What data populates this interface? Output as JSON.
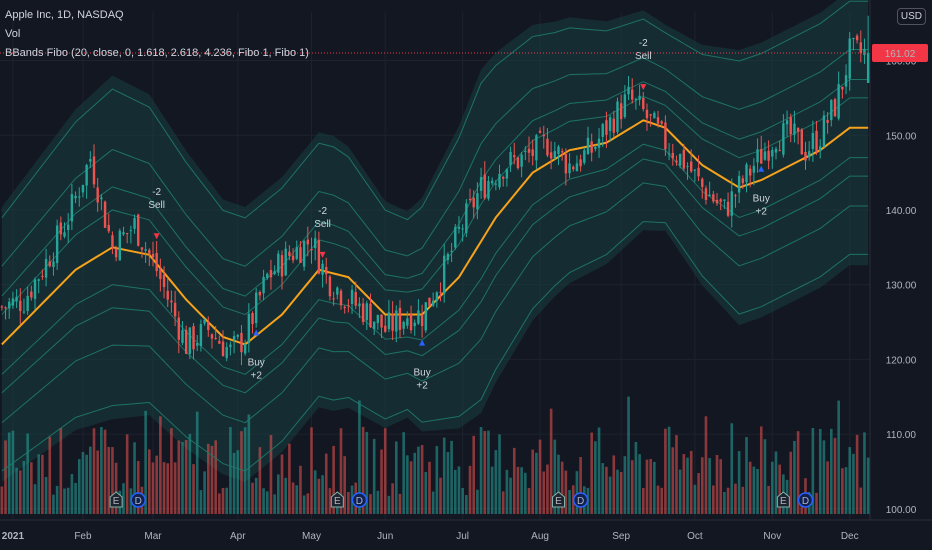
{
  "header": {
    "symbol_line": "Apple Inc, 1D, NASDAQ",
    "vol_label": "Vol",
    "indicator_label": "BBands Fibo (20, close, 0, 1.618, 2.618, 4.236, Fibo 1, Fibo 1)",
    "currency": "USD"
  },
  "last_price": {
    "label": "161.02",
    "value": 161.02,
    "color": "#f23645"
  },
  "colors": {
    "background": "#131722",
    "grid": "#1e222d",
    "up": "#26a69a",
    "down": "#ef5350",
    "basis": "#f7a21b",
    "bands": "#1f7a6c",
    "fill": "#173f40",
    "buy_arrow": "#2962ff",
    "sell_arrow": "#f23645"
  },
  "chart_data": {
    "type": "candlestick",
    "yaxis": {
      "ticks": [
        {
          "label": "160.00",
          "value": 160
        },
        {
          "label": "150.00",
          "value": 150
        },
        {
          "label": "140.00",
          "value": 140
        },
        {
          "label": "130.00",
          "value": 130
        },
        {
          "label": "120.00",
          "value": 120
        },
        {
          "label": "110.00",
          "value": 110
        },
        {
          "label": "100.00",
          "value": 100
        }
      ],
      "ylim": [
        98.5,
        166.5
      ]
    },
    "xaxis": {
      "ticks": [
        {
          "label": "2021",
          "index": 3
        },
        {
          "label": "Feb",
          "index": 22
        },
        {
          "label": "Mar",
          "index": 41
        },
        {
          "label": "Apr",
          "index": 64
        },
        {
          "label": "May",
          "index": 84
        },
        {
          "label": "Jun",
          "index": 104
        },
        {
          "label": "Jul",
          "index": 125
        },
        {
          "label": "Aug",
          "index": 146
        },
        {
          "label": "Sep",
          "index": 168
        },
        {
          "label": "Oct",
          "index": 188
        },
        {
          "label": "Nov",
          "index": 209
        },
        {
          "label": "Dec",
          "index": 230
        }
      ],
      "count": 236
    },
    "anchors": {
      "close": [
        [
          0,
          127
        ],
        [
          6,
          128
        ],
        [
          12,
          133
        ],
        [
          18,
          139
        ],
        [
          24,
          147
        ],
        [
          30,
          135
        ],
        [
          36,
          138
        ],
        [
          42,
          132
        ],
        [
          46,
          127
        ],
        [
          50,
          122
        ],
        [
          56,
          124
        ],
        [
          62,
          121
        ],
        [
          66,
          123
        ],
        [
          72,
          131
        ],
        [
          78,
          134
        ],
        [
          84,
          136
        ],
        [
          88,
          131
        ],
        [
          94,
          128
        ],
        [
          100,
          126
        ],
        [
          104,
          124
        ],
        [
          110,
          126
        ],
        [
          114,
          126
        ],
        [
          120,
          132
        ],
        [
          124,
          137
        ],
        [
          130,
          143
        ],
        [
          136,
          146
        ],
        [
          142,
          147
        ],
        [
          148,
          149
        ],
        [
          154,
          146
        ],
        [
          160,
          148
        ],
        [
          164,
          151
        ],
        [
          170,
          155
        ],
        [
          174,
          153
        ],
        [
          180,
          149
        ],
        [
          186,
          146
        ],
        [
          190,
          143
        ],
        [
          196,
          140
        ],
        [
          200,
          143
        ],
        [
          204,
          146
        ],
        [
          210,
          150
        ],
        [
          214,
          150
        ],
        [
          218,
          148
        ],
        [
          222,
          150
        ],
        [
          224,
          152
        ],
        [
          226,
          154
        ],
        [
          228,
          157
        ],
        [
          230,
          161
        ]
      ],
      "basis": [
        [
          0,
          122
        ],
        [
          10,
          127
        ],
        [
          20,
          132
        ],
        [
          30,
          135
        ],
        [
          40,
          134
        ],
        [
          50,
          128
        ],
        [
          60,
          123
        ],
        [
          66,
          122
        ],
        [
          76,
          126
        ],
        [
          86,
          132
        ],
        [
          94,
          131
        ],
        [
          104,
          126
        ],
        [
          114,
          126
        ],
        [
          124,
          131
        ],
        [
          134,
          139
        ],
        [
          144,
          145
        ],
        [
          154,
          148
        ],
        [
          164,
          149
        ],
        [
          174,
          152
        ],
        [
          180,
          151
        ],
        [
          190,
          146
        ],
        [
          200,
          143
        ],
        [
          206,
          144
        ],
        [
          214,
          146
        ],
        [
          222,
          148
        ],
        [
          230,
          151
        ]
      ],
      "width": [
        [
          0,
          4
        ],
        [
          30,
          5
        ],
        [
          60,
          4
        ],
        [
          90,
          4
        ],
        [
          110,
          3
        ],
        [
          130,
          5
        ],
        [
          150,
          4
        ],
        [
          180,
          3
        ],
        [
          200,
          4
        ],
        [
          230,
          4
        ]
      ]
    },
    "volume": {
      "axis_max_value": 235,
      "pattern": "pseudo-random heights; spike series approximated"
    },
    "signals": [
      {
        "type": "sell",
        "index": 42,
        "label_a": "-2",
        "label_b": "Sell"
      },
      {
        "type": "buy",
        "index": 69,
        "label_a": "Buy",
        "label_b": "+2"
      },
      {
        "type": "sell",
        "index": 87,
        "label_a": "-2",
        "label_b": "Sell"
      },
      {
        "type": "buy",
        "index": 114,
        "label_a": "Buy",
        "label_b": "+2"
      },
      {
        "type": "sell",
        "index": 174,
        "label_a": "-2",
        "label_b": "Sell"
      },
      {
        "type": "buy",
        "index": 206,
        "label_a": "Buy",
        "label_b": "+2"
      }
    ],
    "events": [
      {
        "type": "E",
        "index": 31
      },
      {
        "type": "D",
        "index": 37
      },
      {
        "type": "E",
        "index": 91
      },
      {
        "type": "D",
        "index": 97
      },
      {
        "type": "E",
        "index": 151
      },
      {
        "type": "D",
        "index": 157
      },
      {
        "type": "E",
        "index": 212
      },
      {
        "type": "D",
        "index": 218
      }
    ]
  }
}
